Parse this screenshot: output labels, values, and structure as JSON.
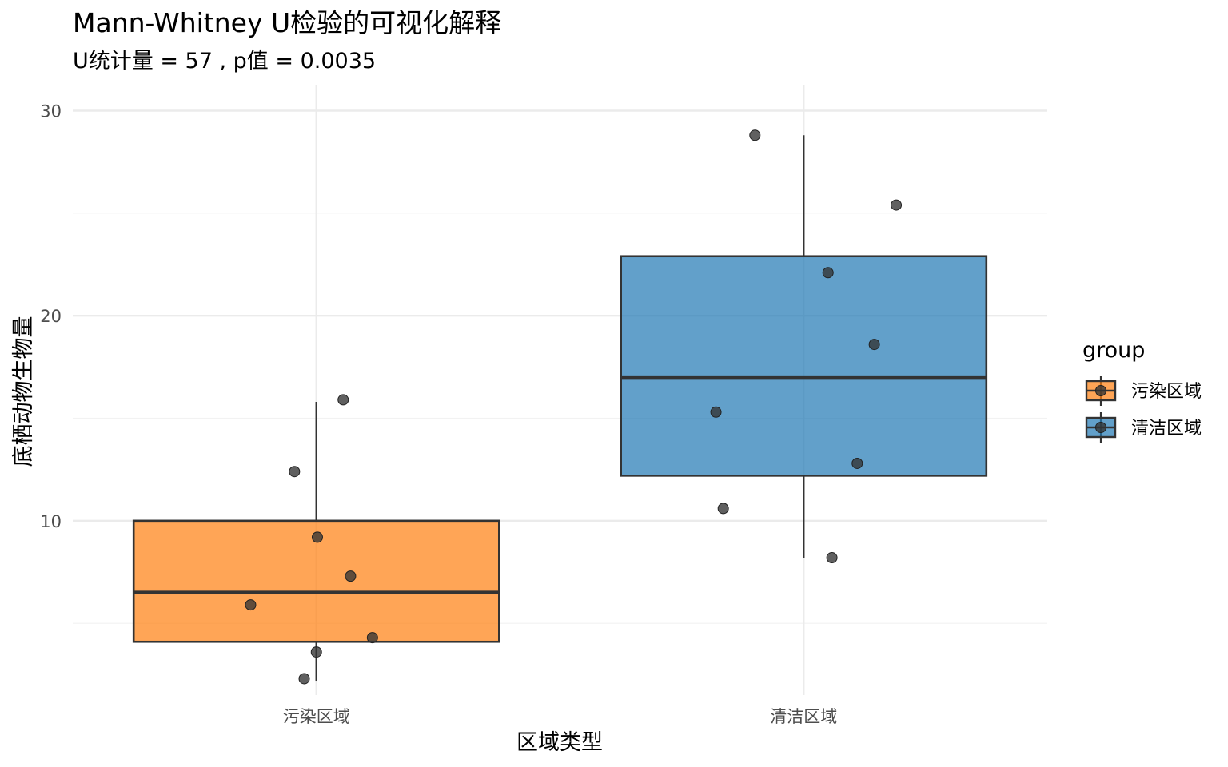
{
  "chart_data": {
    "type": "boxplot",
    "title": "Mann-Whitney U检验的可视化解释",
    "subtitle": "U统计量 = 57 , p值 = 0.0035",
    "xlabel": "区域类型",
    "ylabel": "底栖动物生物量",
    "ylim": [
      1.5,
      31.5
    ],
    "yticks": [
      10,
      20,
      30
    ],
    "categories": [
      "污染区域",
      "清洁区域"
    ],
    "legend": {
      "title": "group",
      "position": "right",
      "entries": [
        "污染区域",
        "清洁区域"
      ]
    },
    "colors": {
      "污染区域": "#ff7f0e",
      "清洁区域": "#1f77b4",
      "points": "#333333",
      "box_line": "#333333"
    },
    "grid": true,
    "boxes": [
      {
        "group": "污染区域",
        "whisker_low": 2.2,
        "q1": 4.1,
        "median": 6.5,
        "q3": 10.0,
        "whisker_high": 15.8
      },
      {
        "group": "清洁区域",
        "whisker_low": 8.2,
        "q1": 12.2,
        "median": 17.0,
        "q3": 22.9,
        "whisker_high": 28.8
      }
    ],
    "points": [
      {
        "group": "污染区域",
        "jitter": 0.055,
        "y": 15.9
      },
      {
        "group": "污染区域",
        "jitter": -0.045,
        "y": 12.4
      },
      {
        "group": "污染区域",
        "jitter": 0.002,
        "y": 9.2
      },
      {
        "group": "污染区域",
        "jitter": 0.07,
        "y": 7.3
      },
      {
        "group": "污染区域",
        "jitter": -0.135,
        "y": 5.9
      },
      {
        "group": "污染区域",
        "jitter": 0.115,
        "y": 4.3
      },
      {
        "group": "污染区域",
        "jitter": 0.0,
        "y": 3.6
      },
      {
        "group": "污染区域",
        "jitter": -0.025,
        "y": 2.3
      },
      {
        "group": "清洁区域",
        "jitter": -0.1,
        "y": 28.8
      },
      {
        "group": "清洁区域",
        "jitter": 0.19,
        "y": 25.4
      },
      {
        "group": "清洁区域",
        "jitter": 0.05,
        "y": 22.1
      },
      {
        "group": "清洁区域",
        "jitter": 0.145,
        "y": 18.6
      },
      {
        "group": "清洁区域",
        "jitter": -0.18,
        "y": 15.3
      },
      {
        "group": "清洁区域",
        "jitter": 0.11,
        "y": 12.8
      },
      {
        "group": "清洁区域",
        "jitter": -0.165,
        "y": 10.6
      },
      {
        "group": "清洁区域",
        "jitter": 0.058,
        "y": 8.2
      }
    ]
  }
}
